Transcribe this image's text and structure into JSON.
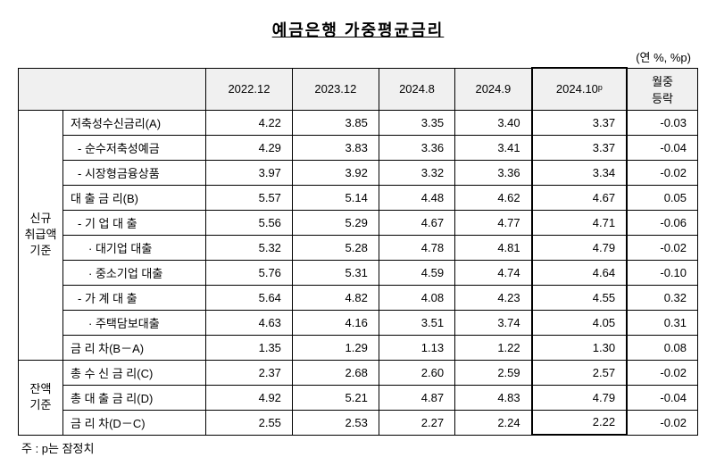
{
  "title": "예금은행 가중평균금리",
  "unit": "(연 %, %p)",
  "columns": [
    "2022.12",
    "2023.12",
    "2024.8",
    "2024.9",
    "2024.10ᵖ",
    "월중\n등락"
  ],
  "group_labels": {
    "g1": "신규\n취급액\n기준",
    "g2": "잔액\n기준"
  },
  "rows": [
    {
      "g": "g1",
      "label": "저축성수신금리(A)",
      "indent": 0,
      "vals": [
        "4.22",
        "3.85",
        "3.35",
        "3.40",
        "3.37",
        "-0.03"
      ]
    },
    {
      "g": "g1",
      "label": "- 순수저축성예금",
      "indent": 1,
      "vals": [
        "4.29",
        "3.83",
        "3.36",
        "3.41",
        "3.37",
        "-0.04"
      ]
    },
    {
      "g": "g1",
      "label": "- 시장형금융상품",
      "indent": 1,
      "vals": [
        "3.97",
        "3.92",
        "3.32",
        "3.36",
        "3.34",
        "-0.02"
      ]
    },
    {
      "g": "g1",
      "label": "대 출 금 리(B)",
      "indent": 0,
      "vals": [
        "5.57",
        "5.14",
        "4.48",
        "4.62",
        "4.67",
        "0.05"
      ]
    },
    {
      "g": "g1",
      "label": "- 기 업 대 출",
      "indent": 1,
      "vals": [
        "5.56",
        "5.29",
        "4.67",
        "4.77",
        "4.71",
        "-0.06"
      ]
    },
    {
      "g": "g1",
      "label": "· 대기업 대출",
      "indent": 2,
      "vals": [
        "5.32",
        "5.28",
        "4.78",
        "4.81",
        "4.79",
        "-0.02"
      ]
    },
    {
      "g": "g1",
      "label": "· 중소기업 대출",
      "indent": 2,
      "vals": [
        "5.76",
        "5.31",
        "4.59",
        "4.74",
        "4.64",
        "-0.10"
      ]
    },
    {
      "g": "g1",
      "label": "- 가 계 대 출",
      "indent": 1,
      "vals": [
        "5.64",
        "4.82",
        "4.08",
        "4.23",
        "4.55",
        "0.32"
      ]
    },
    {
      "g": "g1",
      "label": "· 주택담보대출",
      "indent": 2,
      "vals": [
        "4.63",
        "4.16",
        "3.51",
        "3.74",
        "4.05",
        "0.31"
      ]
    },
    {
      "g": "g1",
      "label": "금 리 차(B－A)",
      "indent": 0,
      "vals": [
        "1.35",
        "1.29",
        "1.13",
        "1.22",
        "1.30",
        "0.08"
      ]
    },
    {
      "g": "g2",
      "label": "총 수 신 금 리(C)",
      "indent": 0,
      "vals": [
        "2.37",
        "2.68",
        "2.60",
        "2.59",
        "2.57",
        "-0.02"
      ]
    },
    {
      "g": "g2",
      "label": "총 대 출 금 리(D)",
      "indent": 0,
      "vals": [
        "4.92",
        "5.21",
        "4.87",
        "4.83",
        "4.79",
        "-0.04"
      ]
    },
    {
      "g": "g2",
      "label": "금 리 차(D－C)",
      "indent": 0,
      "vals": [
        "2.55",
        "2.53",
        "2.27",
        "2.24",
        "2.22",
        "-0.02"
      ]
    }
  ],
  "footnote": "주 : p는 잠정치",
  "colors": {
    "header_bg": "#f0f0f0",
    "border": "#000000",
    "bg": "#ffffff"
  }
}
